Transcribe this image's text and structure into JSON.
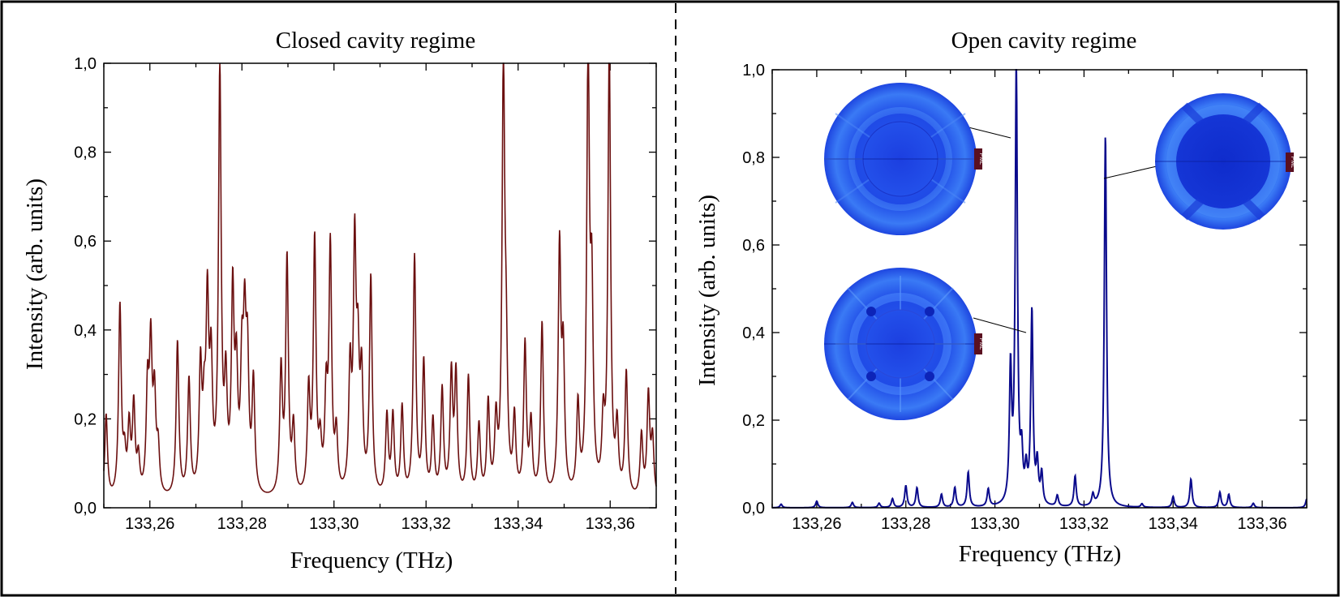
{
  "chart_data": [
    {
      "type": "line",
      "title": "Closed cavity regime",
      "xlabel": "Frequency (THz)",
      "ylabel": "Intensity (arb. units)",
      "xlim": [
        133.25,
        133.37
      ],
      "ylim": [
        0,
        1.0
      ],
      "x_ticks": [
        "133,26",
        "133,28",
        "133,30",
        "133,32",
        "133,34",
        "133,36"
      ],
      "y_ticks": [
        "0,0",
        "0,2",
        "0,4",
        "0,6",
        "0,8",
        "1,0"
      ],
      "color": "#6b0f0f",
      "peaks": [
        [
          133.2505,
          0.19
        ],
        [
          133.2535,
          0.43
        ],
        [
          133.2545,
          0.08
        ],
        [
          133.2555,
          0.15
        ],
        [
          133.2565,
          0.2
        ],
        [
          133.2575,
          0.08
        ],
        [
          133.2595,
          0.23
        ],
        [
          133.2602,
          0.32
        ],
        [
          133.261,
          0.21
        ],
        [
          133.2618,
          0.1
        ],
        [
          133.266,
          0.35
        ],
        [
          133.2685,
          0.26
        ],
        [
          133.271,
          0.28
        ],
        [
          133.2718,
          0.15
        ],
        [
          133.2725,
          0.41
        ],
        [
          133.2733,
          0.27
        ],
        [
          133.2752,
          0.95
        ],
        [
          133.2765,
          0.23
        ],
        [
          133.278,
          0.44
        ],
        [
          133.2788,
          0.25
        ],
        [
          133.28,
          0.26
        ],
        [
          133.2806,
          0.33
        ],
        [
          133.2812,
          0.28
        ],
        [
          133.2825,
          0.25
        ],
        [
          133.2885,
          0.28
        ],
        [
          133.2898,
          0.53
        ],
        [
          133.2912,
          0.15
        ],
        [
          133.2945,
          0.23
        ],
        [
          133.2958,
          0.57
        ],
        [
          133.297,
          0.1
        ],
        [
          133.2983,
          0.21
        ],
        [
          133.2992,
          0.55
        ],
        [
          133.3005,
          0.13
        ],
        [
          133.3035,
          0.27
        ],
        [
          133.3045,
          0.54
        ],
        [
          133.3052,
          0.27
        ],
        [
          133.306,
          0.25
        ],
        [
          133.308,
          0.49
        ],
        [
          133.3115,
          0.18
        ],
        [
          133.3128,
          0.18
        ],
        [
          133.3148,
          0.2
        ],
        [
          133.3175,
          0.54
        ],
        [
          133.3195,
          0.3
        ],
        [
          133.3215,
          0.17
        ],
        [
          133.3235,
          0.24
        ],
        [
          133.3255,
          0.27
        ],
        [
          133.3265,
          0.27
        ],
        [
          133.3292,
          0.27
        ],
        [
          133.3315,
          0.16
        ],
        [
          133.3335,
          0.21
        ],
        [
          133.3352,
          0.16
        ],
        [
          133.3368,
          0.95
        ],
        [
          133.3374,
          0.25
        ],
        [
          133.3392,
          0.17
        ],
        [
          133.3415,
          0.34
        ],
        [
          133.3428,
          0.16
        ],
        [
          133.3452,
          0.39
        ],
        [
          133.349,
          0.55
        ],
        [
          133.3498,
          0.3
        ],
        [
          133.353,
          0.2
        ],
        [
          133.3552,
          0.99
        ],
        [
          133.356,
          0.42
        ],
        [
          133.3585,
          0.15
        ],
        [
          133.3598,
          1.0
        ],
        [
          133.3615,
          0.15
        ],
        [
          133.3635,
          0.28
        ],
        [
          133.3668,
          0.14
        ],
        [
          133.3683,
          0.23
        ],
        [
          133.3692,
          0.13
        ]
      ]
    },
    {
      "type": "line",
      "title": "Open cavity regime",
      "xlabel": "Frequency (THz)",
      "ylabel": "Intensity (arb. units)",
      "xlim": [
        133.25,
        133.37
      ],
      "ylim": [
        0,
        1.0
      ],
      "x_ticks": [
        "133,26",
        "133,28",
        "133,30",
        "133,32",
        "133,34",
        "133,36"
      ],
      "y_ticks": [
        "0,0",
        "0,2",
        "0,4",
        "0,6",
        "0,8",
        "1,0"
      ],
      "color": "#0a0a8c",
      "peaks": [
        [
          133.252,
          0.008
        ],
        [
          133.26,
          0.015
        ],
        [
          133.268,
          0.012
        ],
        [
          133.274,
          0.01
        ],
        [
          133.277,
          0.02
        ],
        [
          133.28,
          0.05
        ],
        [
          133.2825,
          0.045
        ],
        [
          133.288,
          0.03
        ],
        [
          133.291,
          0.045
        ],
        [
          133.294,
          0.08
        ],
        [
          133.2985,
          0.04
        ],
        [
          133.3035,
          0.3
        ],
        [
          133.3048,
          1.0
        ],
        [
          133.306,
          0.1
        ],
        [
          133.307,
          0.07
        ],
        [
          133.3083,
          0.44
        ],
        [
          133.3095,
          0.09
        ],
        [
          133.3105,
          0.07
        ],
        [
          133.314,
          0.025
        ],
        [
          133.318,
          0.07
        ],
        [
          133.322,
          0.025
        ],
        [
          133.3248,
          0.85
        ],
        [
          133.333,
          0.008
        ],
        [
          133.34,
          0.025
        ],
        [
          133.344,
          0.065
        ],
        [
          133.3505,
          0.035
        ],
        [
          133.3525,
          0.03
        ],
        [
          133.358,
          0.01
        ],
        [
          133.37,
          0.02
        ]
      ],
      "insets": [
        {
          "label": "PML",
          "peak_frequency": 133.3048
        },
        {
          "label": "PML",
          "peak_frequency": 133.3083
        },
        {
          "label": "PML",
          "peak_frequency": 133.3248
        }
      ]
    }
  ]
}
